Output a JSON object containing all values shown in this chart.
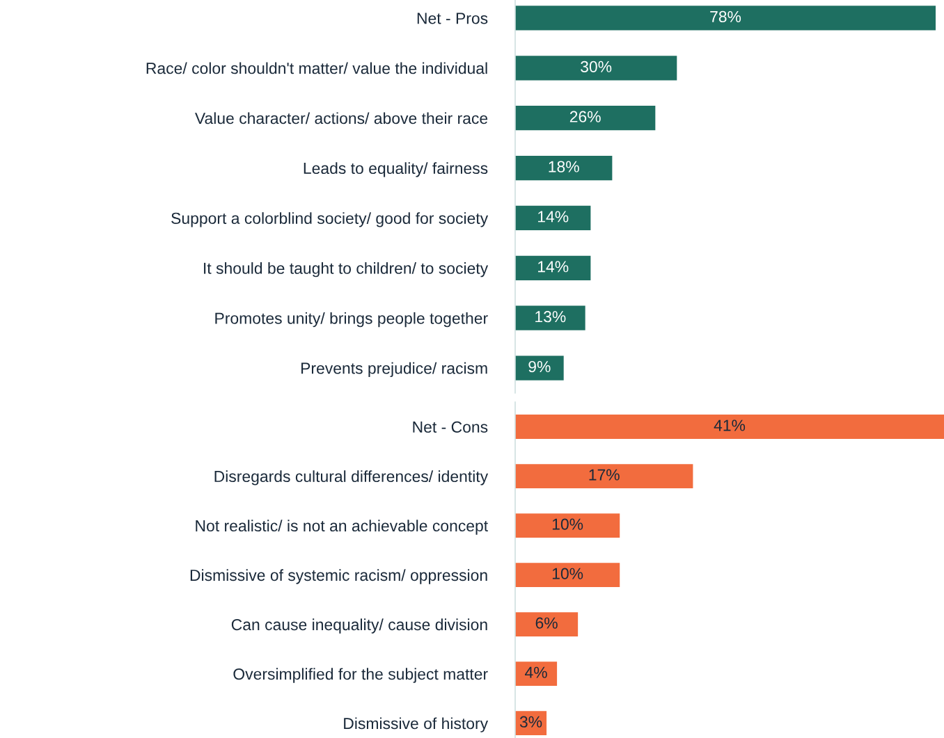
{
  "chart_data": [
    {
      "type": "bar",
      "orientation": "horizontal",
      "categories": [
        "Net - Pros",
        "Race/ color shouldn't matter/ value the individual",
        "Value character/ actions/ above their race",
        "Leads to equality/ fairness",
        "Support a colorblind society/ good for society",
        "It should be taught to children/ to society",
        "Promotes unity/ brings people together",
        "Prevents prejudice/ racism"
      ],
      "values": [
        78,
        30,
        26,
        18,
        14,
        14,
        13,
        9
      ],
      "value_labels": [
        "78%",
        "30%",
        "26%",
        "18%",
        "14%",
        "14%",
        "13%",
        "9%"
      ],
      "color": "#1e6f61",
      "grid": false,
      "legend": false,
      "tick_labels": "y"
    },
    {
      "type": "bar",
      "orientation": "horizontal",
      "categories": [
        "Net - Cons",
        "Disregards cultural differences/ identity",
        "Not realistic/ is not an achievable concept",
        "Dismissive of systemic racism/ oppression",
        "Can cause inequality/ cause division",
        "Oversimplified for the subject matter",
        "Dismissive of history"
      ],
      "values": [
        41,
        17,
        10,
        10,
        6,
        4,
        3
      ],
      "value_labels": [
        "41%",
        "17%",
        "10%",
        "10%",
        "6%",
        "4%",
        "3%"
      ],
      "color": "#f26c3e",
      "grid": false,
      "legend": false,
      "tick_labels": "y"
    }
  ]
}
